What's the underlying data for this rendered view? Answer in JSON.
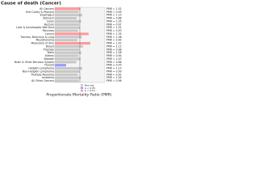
{
  "chart_data": {
    "type": "bar",
    "orientation": "horizontal",
    "title": "Cause of death (Cancer)",
    "x_label": "Proportionate Mortality Ratio (PMR)",
    "categories": [
      "All Cancers",
      "Oral Cavity & Pharynx",
      "Esophagus",
      "Stomach",
      "Colon",
      "Rectum",
      "Liver & Intrahepatic Bile Duct",
      "Pancreas",
      "Larynx",
      "Trachea, Bronchus & Lung",
      "Mesothelioma",
      "Melanoma of Skin",
      "Breast",
      "Prostate",
      "Testis",
      "Kidney",
      "Bladder",
      "Brain & Other Nervous System",
      "Thyroid",
      "Hodgkin Lymphoma",
      "Non-Hodgkin Lymphoma",
      "Multiple Myeloma",
      "Leukemia",
      "All Other Cancers"
    ],
    "values": [
      1.02,
      0.95,
      1.1,
      0.88,
      1.05,
      0.97,
      1.01,
      0.93,
      1.35,
      1.08,
      0.9,
      1.42,
      1.12,
      0.98,
      1.06,
      0.94,
      1.03,
      0.86,
      0.45,
      1.1,
      0.99,
      0.92,
      1.04,
      0.96
    ],
    "value_labels": [
      "PMR = 1.02",
      "PMR = 0.95",
      "PMR = 1.10",
      "PMR = 0.88",
      "PMR = 1.05",
      "PMR = 0.97",
      "PMR = 1.01",
      "PMR = 0.93",
      "PMR = 1.35",
      "PMR = 1.08",
      "PMR = 0.90",
      "PMR = 1.42",
      "PMR = 1.12",
      "PMR = 0.98",
      "PMR = 1.06",
      "PMR = 0.94",
      "PMR = 1.03",
      "PMR = 0.86",
      "PMR = 0.45",
      "PMR = 1.10",
      "PMR = 0.99",
      "PMR = 0.92",
      "PMR = 1.04",
      "PMR = 0.96"
    ],
    "colors": [
      "#ff9999",
      "#c8c8c8",
      "#c8c8c8",
      "#c8c8c8",
      "#c8c8c8",
      "#c8c8c8",
      "#c8c8c8",
      "#c8c8c8",
      "#ff9999",
      "#c8c8c8",
      "#c8c8c8",
      "#ff9999",
      "#c8c8c8",
      "#c8c8c8",
      "#c8c8c8",
      "#c8c8c8",
      "#c8c8c8",
      "#c8c8c8",
      "#9999ff",
      "#c8c8c8",
      "#c8c8c8",
      "#c8c8c8",
      "#c8c8c8",
      "#c8c8c8"
    ],
    "xlim": [
      0,
      2
    ],
    "reference_line": 1,
    "legend": [
      {
        "name": "Non-sig",
        "color": "#c8c8c8"
      },
      {
        "name": "p < 0.05",
        "color": "#9999ff"
      },
      {
        "name": "p < 0.01",
        "color": "#ff9999"
      }
    ]
  }
}
